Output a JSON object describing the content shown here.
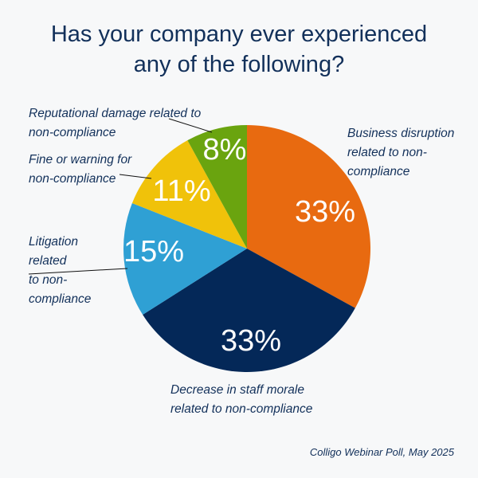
{
  "chart_data": {
    "type": "pie",
    "title": [
      "Has your company ever experienced",
      "any of the following?"
    ],
    "slices": [
      {
        "label": [
          "Business disruption",
          "related to non-",
          "compliance"
        ],
        "value": 33,
        "value_label": "33%",
        "color": "#e86a10"
      },
      {
        "label": [
          "Decrease in staff morale",
          "related to non-compliance"
        ],
        "value": 33,
        "value_label": "33%",
        "color": "#042858"
      },
      {
        "label": [
          "Litigation",
          "related",
          "to non-",
          "compliance"
        ],
        "value": 15,
        "value_label": "15%",
        "color": "#2fa0d4"
      },
      {
        "label": [
          "Fine or warning for",
          "non-compliance"
        ],
        "value": 11,
        "value_label": "11%",
        "color": "#f0c20a"
      },
      {
        "label": [
          "Reputational damage related to",
          "non-compliance"
        ],
        "value": 8,
        "value_label": "8%",
        "color": "#6aa40f"
      }
    ],
    "source": "Colligo Webinar Poll, May 2025"
  }
}
